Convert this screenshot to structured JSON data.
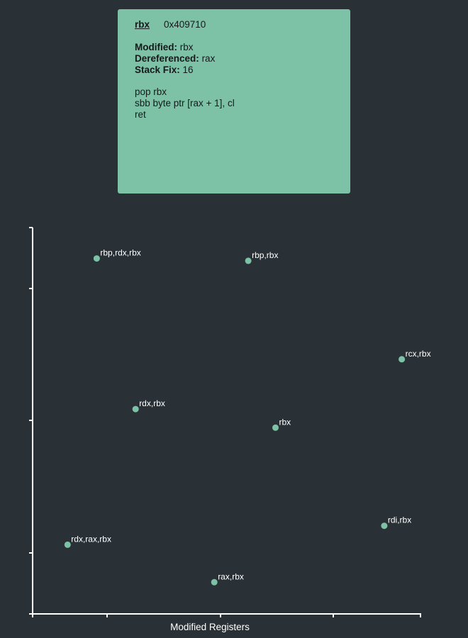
{
  "tooltip": {
    "register": "rbx",
    "address": "0x409710",
    "modified_label": "Modified:",
    "modified_value": "rbx",
    "dereferenced_label": "Dereferenced:",
    "dereferenced_value": "rax",
    "stackfix_label": "Stack Fix:",
    "stackfix_value": "16",
    "instructions": [
      "pop rbx",
      "sbb byte ptr [rax + 1], cl",
      "ret"
    ]
  },
  "colors": {
    "background": "#2a3136",
    "point": "#7dc2a6",
    "axis": "#ffffff",
    "card": "#7dc2a6"
  },
  "chart_data": {
    "type": "scatter",
    "xlabel": "Modified Registers",
    "ylabel": "",
    "title": "",
    "grid": false,
    "points": [
      {
        "label": "rbp,rdx,rbx",
        "x": 33,
        "y": 92
      },
      {
        "label": "rbp,rbx",
        "x": 111,
        "y": 91.4
      },
      {
        "label": "rcx,rbx",
        "x": 190,
        "y": 65.9
      },
      {
        "label": "rdx,rbx",
        "x": 53,
        "y": 53
      },
      {
        "label": "rbx",
        "x": 125,
        "y": 48.2
      },
      {
        "label": "rdi,rbx",
        "x": 181,
        "y": 22.8
      },
      {
        "label": "rdx,rax,rbx",
        "x": 18,
        "y": 17.9
      },
      {
        "label": "rax,rbx",
        "x": 93.5,
        "y": 8.2
      }
    ]
  }
}
